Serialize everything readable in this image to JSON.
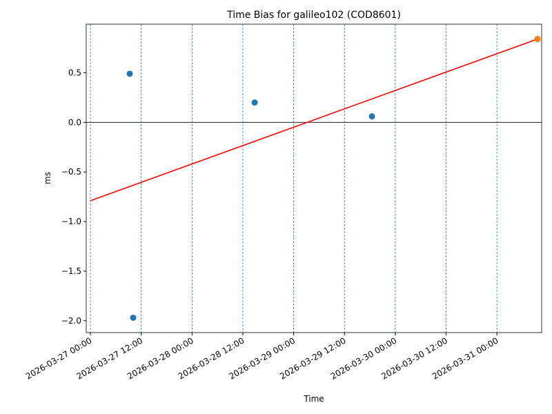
{
  "chart_data": {
    "type": "scatter",
    "title": "Time Bias for galileo102 (COD8601)",
    "xlabel": "Time",
    "ylabel": "ms",
    "xlim": [
      "2026-03-26 23:01",
      "2026-03-31 10:34"
    ],
    "xticks": [
      "2026-03-27 00:00",
      "2026-03-27 12:00",
      "2026-03-28 00:00",
      "2026-03-28 12:00",
      "2026-03-29 00:00",
      "2026-03-29 12:00",
      "2026-03-30 00:00",
      "2026-03-30 12:00",
      "2026-03-31 00:00"
    ],
    "ylim": [
      -2.12,
      0.99
    ],
    "yticks": [
      {
        "value": -2.0,
        "label": "−2.0"
      },
      {
        "value": -1.5,
        "label": "−1.5"
      },
      {
        "value": -1.0,
        "label": "−1.0"
      },
      {
        "value": -0.5,
        "label": "−0.5"
      },
      {
        "value": 0,
        "label": "0.0"
      },
      0.5
    ],
    "xgrid": true,
    "grid_color": "#1f5fbf",
    "hline": 0,
    "series": [
      {
        "type": "scatter",
        "color": "#1f77b4",
        "x": [
          "2026-03-27 09:17",
          "2026-03-27 10:06",
          "2026-03-28 14:47",
          "2026-03-29 18:29"
        ],
        "values": [
          0.49,
          -1.97,
          0.2,
          0.06
        ]
      },
      {
        "type": "line",
        "color": "#ff0000",
        "x": [
          "2026-03-27 00:00",
          "2026-03-31 09:36"
        ],
        "values": [
          -0.79,
          0.84
        ]
      },
      {
        "type": "scatter",
        "color": "#ff7f0e",
        "x": [
          "2026-03-31 09:36"
        ],
        "values": [
          0.84
        ]
      }
    ]
  }
}
